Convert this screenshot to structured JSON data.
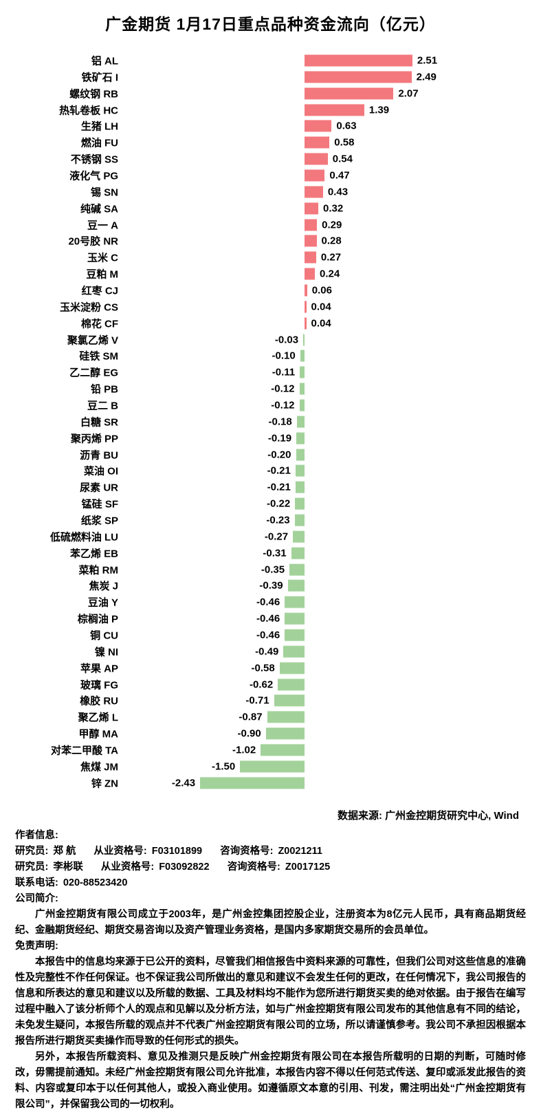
{
  "chart_data": {
    "type": "bar",
    "orientation": "horizontal",
    "title": "广金期货 1月17日重点品种资金流向（亿元）",
    "unit": "亿元",
    "xlim": [
      -2.6,
      2.9
    ],
    "grid": false,
    "legend": false,
    "positive_color": "#f3787d",
    "negative_color": "#a2d29a",
    "categories": [
      "铝 AL",
      "铁矿石 I",
      "螺纹钢 RB",
      "热轧卷板 HC",
      "生猪 LH",
      "燃油 FU",
      "不锈钢 SS",
      "液化气 PG",
      "锡 SN",
      "纯碱 SA",
      "豆一 A",
      "20号胶 NR",
      "玉米 C",
      "豆粕 M",
      "红枣 CJ",
      "玉米淀粉 CS",
      "棉花 CF",
      "聚氯乙烯 V",
      "硅铁 SM",
      "乙二醇 EG",
      "铅 PB",
      "豆二 B",
      "白糖 SR",
      "聚丙烯 PP",
      "沥青 BU",
      "菜油 OI",
      "尿素 UR",
      "锰硅 SF",
      "纸浆 SP",
      "低硫燃料油 LU",
      "苯乙烯 EB",
      "菜粕 RM",
      "焦炭 J",
      "豆油 Y",
      "棕榈油 P",
      "铜 CU",
      "镍 NI",
      "苹果 AP",
      "玻璃 FG",
      "橡胶 RU",
      "聚乙烯 L",
      "甲醇 MA",
      "对苯二甲酸 TA",
      "焦煤 JM",
      "锌 ZN"
    ],
    "values": [
      2.51,
      2.49,
      2.07,
      1.39,
      0.63,
      0.58,
      0.54,
      0.47,
      0.43,
      0.32,
      0.29,
      0.28,
      0.27,
      0.24,
      0.06,
      0.04,
      0.04,
      -0.03,
      -0.1,
      -0.11,
      -0.12,
      -0.12,
      -0.18,
      -0.19,
      -0.2,
      -0.21,
      -0.21,
      -0.22,
      -0.23,
      -0.27,
      -0.31,
      -0.35,
      -0.39,
      -0.46,
      -0.46,
      -0.46,
      -0.49,
      -0.58,
      -0.62,
      -0.71,
      -0.87,
      -0.9,
      -1.02,
      -1.5,
      -2.43
    ]
  },
  "footer": {
    "data_source": "数据来源: 广州金控期货研究中心, Wind",
    "author_header": "作者信息:",
    "researchers": [
      {
        "role_label": "研究员:",
        "name": "郑 航",
        "cert_label": "从业资格号:",
        "cert_no": "F03101899",
        "advisor_label": "咨询资格号:",
        "advisor_no": "Z0021211"
      },
      {
        "role_label": "研究员:",
        "name": "李彬联",
        "cert_label": "从业资格号:",
        "cert_no": "F03092822",
        "advisor_label": "咨询资格号:",
        "advisor_no": "Z0017125"
      }
    ],
    "phone": {
      "label": "联系电话:",
      "number": "020-88523420"
    },
    "company": {
      "header": "公司简介:",
      "text": "广州金控期货有限公司成立于2003年，是广州金控集团控股企业，注册资本为8亿元人民币，具有商品期货经纪、金融期货经纪、期货交易咨询以及资产管理业务资格，是国内多家期货交易所的会员单位。"
    },
    "disclaimer": {
      "header": "免责声明:",
      "paragraphs": [
        "本报告中的信息均来源于已公开的资料，尽管我们相信报告中资料来源的可靠性，但我们公司对这些信息的准确性及完整性不作任何保证。也不保证我公司所做出的意见和建议不会发生任何的更改，在任何情况下，我公司报告的信息和所表达的意见和建议以及所载的数据、工具及材料均不能作为您所进行期货买卖的绝对依据。由于报告在编写过程中融入了该分析师个人的观点和见解以及分析方法，如与广州金控期货有限公司发布的其他信息有不同的结论，未免发生疑问，本报告所载的观点并不代表广州金控期货有限公司的立场，所以请谨慎参考。我公司不承担因根据本报告所进行期货买卖操作而导致的任何形式的损失。",
        "另外，本报告所载资料、意见及推测只是反映广州金控期货有限公司在本报告所载明的日期的判断，可随时修改，毋需提前通知。未经广州金控期货有限公司允许批准，本报告内容不得以任何范式传送、复印或派发此报告的资料、内容或复印本于以任何其他人，或投入商业使用。如遵循原文本意的引用、刊发，需注明出处“广州金控期货有限公司”，并保留我公司的一切权利。"
      ]
    }
  }
}
